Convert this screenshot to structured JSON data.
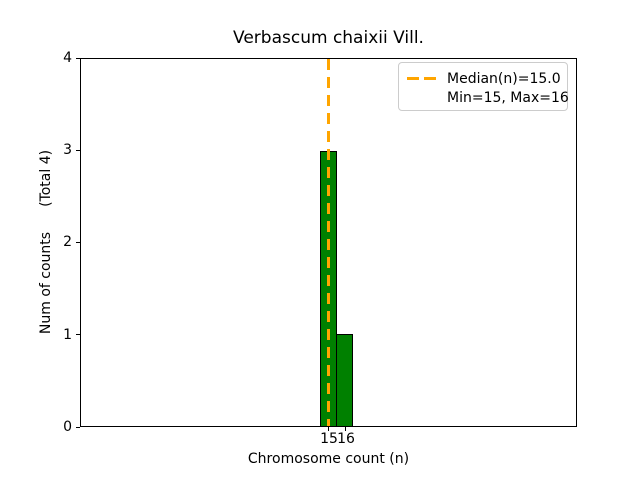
{
  "title": "Verbascum chaixii Vill.",
  "axes": {
    "xlabel": "Chromosome count (n)",
    "ylabel_main": "Num of counts",
    "ylabel_total": "(Total 4)",
    "yticks": [
      "0",
      "1",
      "2",
      "3",
      "4"
    ],
    "xticks": [
      "15",
      "16"
    ]
  },
  "legend": {
    "median_label": "Median(n)=15.0",
    "minmax_label": "Min=15, Max=16"
  },
  "colors": {
    "bar_fill": "#008000",
    "bar_edge": "#000000",
    "median_line": "#FFA500",
    "legend_border": "#cccccc",
    "background": "#ffffff"
  },
  "chart_data": {
    "type": "bar",
    "title": "Verbascum chaixii Vill.",
    "xlabel": "Chromosome count (n)",
    "ylabel": "Num of counts (Total 4)",
    "categories": [
      15,
      16
    ],
    "values": [
      3,
      1
    ],
    "total_counts": 4,
    "median_n": 15.0,
    "min_n": 15,
    "max_n": 16,
    "ylim": [
      0,
      4
    ],
    "yticks": [
      0,
      1,
      2,
      3,
      4
    ],
    "grid": false,
    "legend_position": "upper right",
    "legend_entries": [
      "Median(n)=15.0",
      "Min=15, Max=16"
    ],
    "bar_color": "#008000",
    "median_line_style": "dashed",
    "median_line_color": "#FFA500"
  }
}
